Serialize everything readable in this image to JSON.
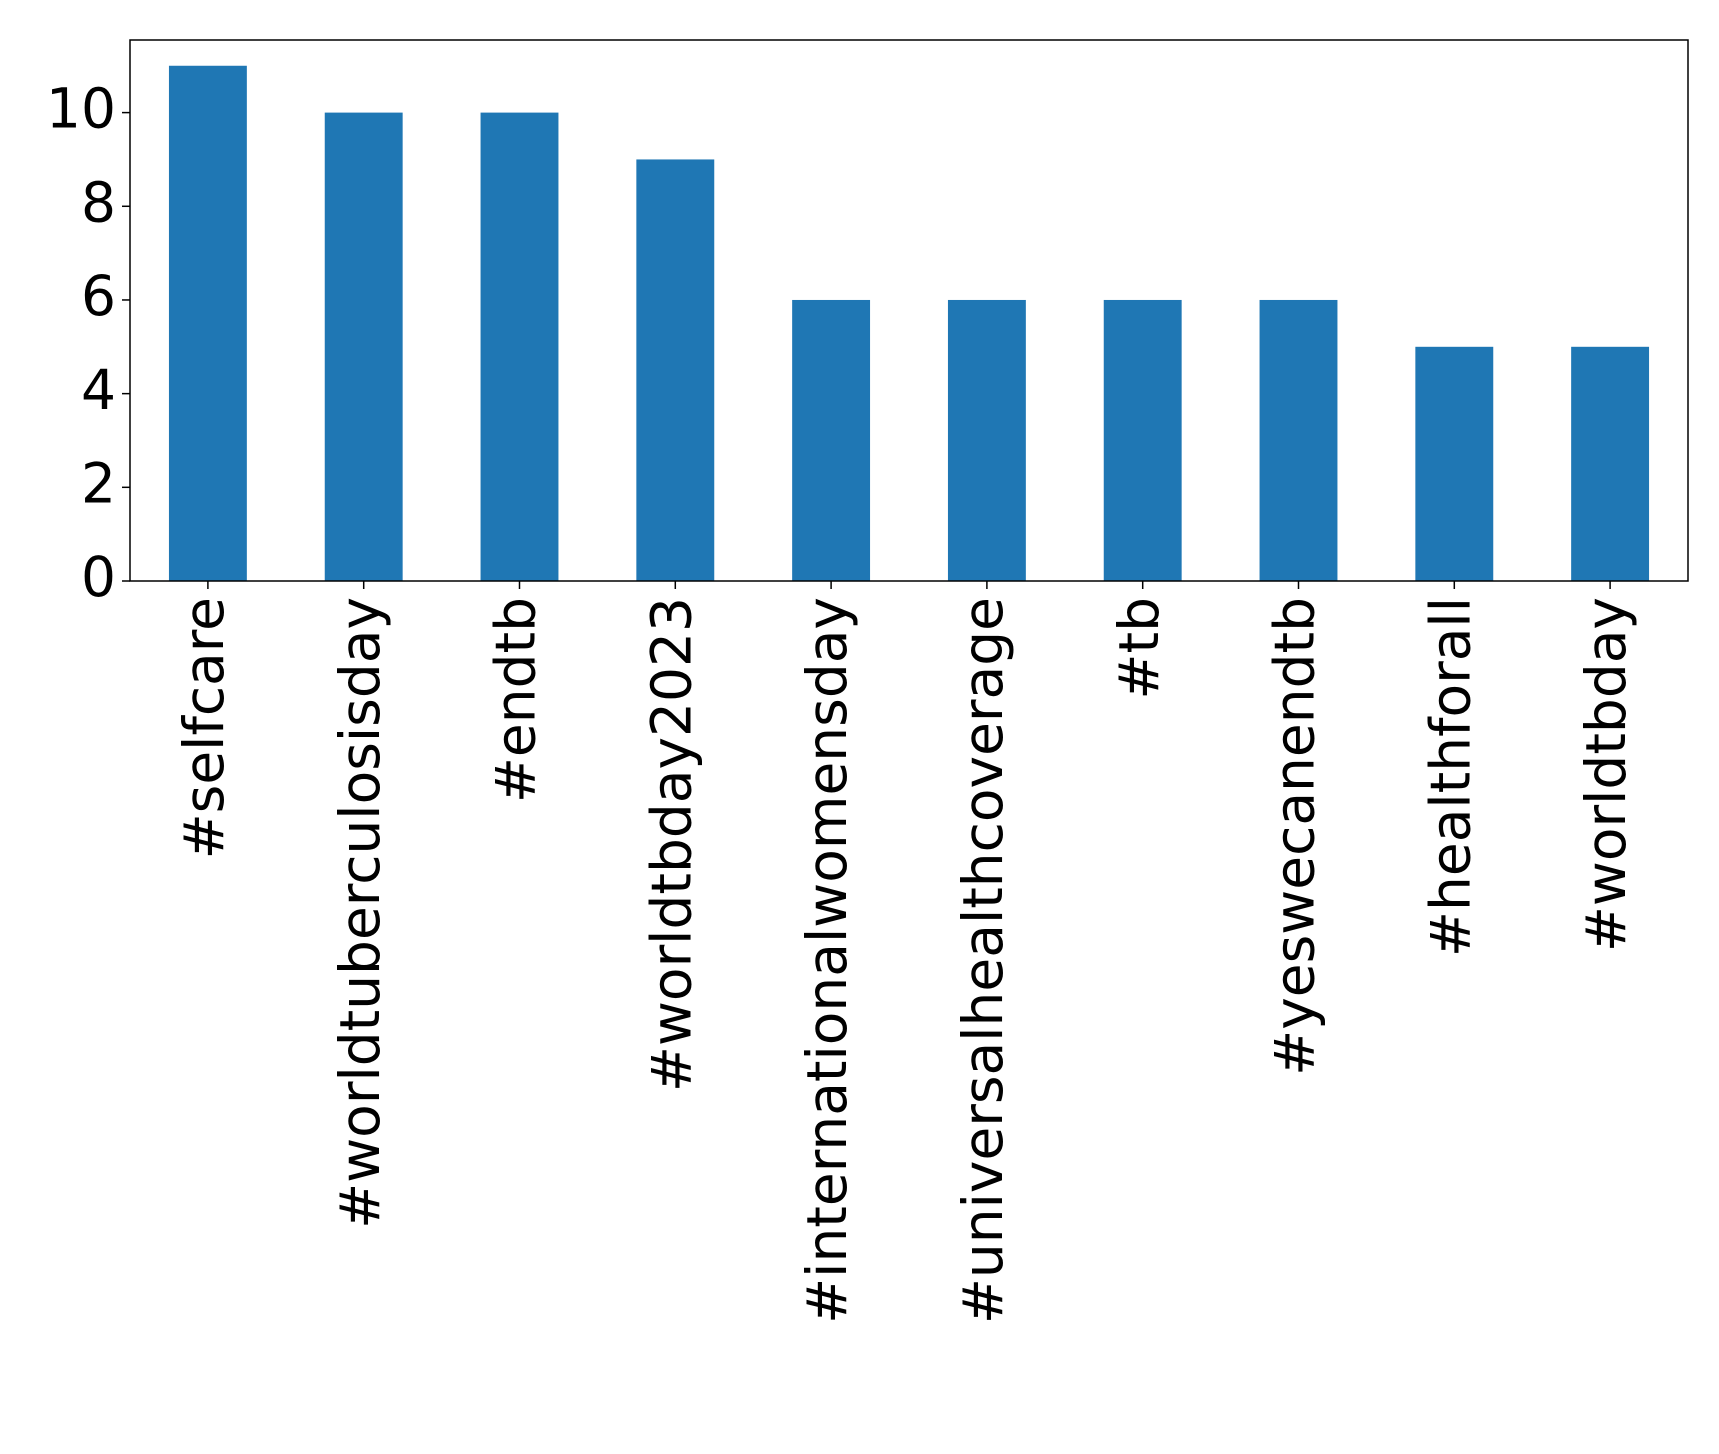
{
  "chart_data": {
    "type": "bar",
    "categories": [
      "#selfcare",
      "#worldtuberculosisday",
      "#endtb",
      "#worldtbday2023",
      "#internationalwomensday",
      "#universalhealthcoverage",
      "#tb",
      "#yeswecanendtb",
      "#healthforall",
      "#worldtbday"
    ],
    "values": [
      11,
      10,
      10,
      9,
      6,
      6,
      6,
      6,
      5,
      5
    ],
    "color": "#1f77b4",
    "ylim": [
      0,
      11.55
    ],
    "yticks": [
      0,
      2,
      4,
      6,
      8,
      10
    ],
    "grid": false
  }
}
